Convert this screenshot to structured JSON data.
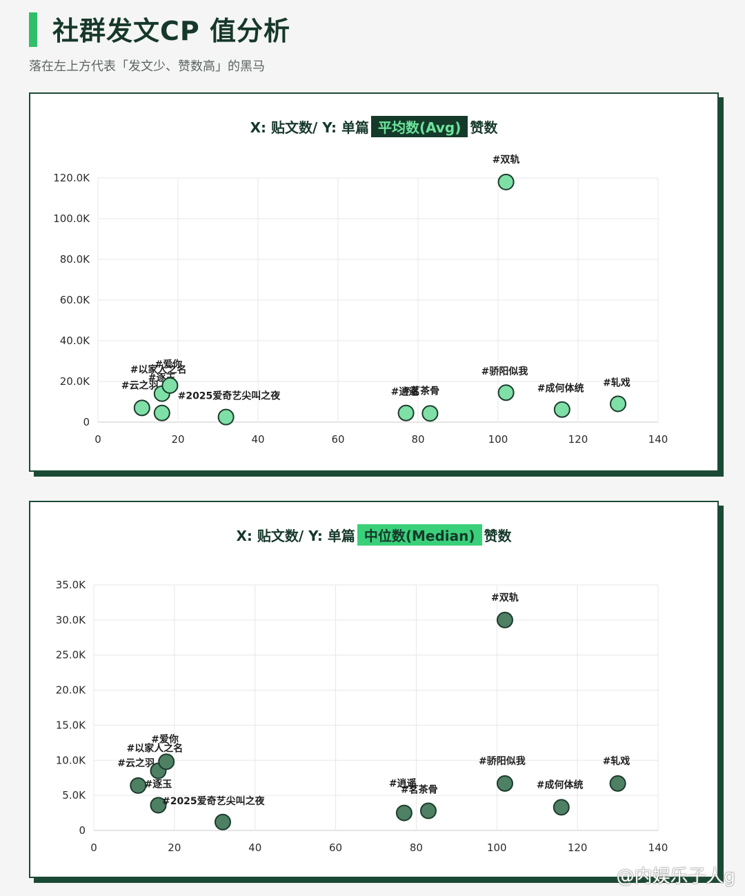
{
  "header": {
    "title": "社群发文CP 值分析",
    "subtitle": "落在左上方代表「发文少、赞数高」的黑马"
  },
  "watermark": "@内娱乐子人g",
  "colors": {
    "accent": "#2fbf6a",
    "frame": "#1b4a34",
    "avg_point": "#7ee0a6",
    "median_point": "#4e8064",
    "point_stroke": "#1c3a2c"
  },
  "chart_data": [
    {
      "type": "scatter",
      "title_prefix": "X: 贴文数/ Y: 单篇",
      "title_highlight": "平均数(Avg)",
      "title_suffix": "赞数",
      "xlabel": "贴文数",
      "ylabel": "单篇平均数赞数",
      "xlim": [
        0,
        140
      ],
      "ylim": [
        0,
        120000
      ],
      "x_ticks": [
        "0",
        "20",
        "40",
        "60",
        "80",
        "100",
        "120",
        "140"
      ],
      "y_ticks": [
        {
          "value": 0,
          "label": "0"
        },
        {
          "value": 20000,
          "label": "20.0K"
        },
        {
          "value": 40000,
          "label": "40.0K"
        },
        {
          "value": 60000,
          "label": "60.0K"
        },
        {
          "value": 80000,
          "label": "80.0K"
        },
        {
          "value": 100000,
          "label": "100.0K"
        },
        {
          "value": 120000,
          "label": "120.0K"
        }
      ],
      "grid": true,
      "points": [
        {
          "label": "#云之羽",
          "x": 11,
          "y": 7000
        },
        {
          "label": "#逐玉",
          "x": 16,
          "y": 14000
        },
        {
          "label": "#以家人之名",
          "x": 16,
          "y": 4500
        },
        {
          "label": "#爱你",
          "x": 18,
          "y": 18000
        },
        {
          "label": "#2025爱奇艺尖叫之夜",
          "x": 32,
          "y": 2500
        },
        {
          "label": "#逍遥",
          "x": 77,
          "y": 4500
        },
        {
          "label": "#茗茶骨",
          "x": 83,
          "y": 4300
        },
        {
          "label": "#双轨",
          "x": 102,
          "y": 118000
        },
        {
          "label": "#骄阳似我",
          "x": 102,
          "y": 14500
        },
        {
          "label": "#成何体统",
          "x": 116,
          "y": 6200
        },
        {
          "label": "#轧戏",
          "x": 130,
          "y": 9000
        }
      ]
    },
    {
      "type": "scatter",
      "title_prefix": "X: 贴文数/ Y: 单篇",
      "title_highlight": "中位数(Median)",
      "title_suffix": "赞数",
      "xlabel": "贴文数",
      "ylabel": "单篇中位数赞数",
      "xlim": [
        0,
        140
      ],
      "ylim": [
        0,
        35000
      ],
      "x_ticks": [
        "0",
        "20",
        "40",
        "60",
        "80",
        "100",
        "120",
        "140"
      ],
      "y_ticks": [
        {
          "value": 0,
          "label": "0"
        },
        {
          "value": 5000,
          "label": "5.0K"
        },
        {
          "value": 10000,
          "label": "10.0K"
        },
        {
          "value": 15000,
          "label": "15.0K"
        },
        {
          "value": 20000,
          "label": "20.0K"
        },
        {
          "value": 25000,
          "label": "25.0K"
        },
        {
          "value": 30000,
          "label": "30.0K"
        },
        {
          "value": 35000,
          "label": "35.0K"
        }
      ],
      "grid": true,
      "points": [
        {
          "label": "#云之羽",
          "x": 11,
          "y": 6400
        },
        {
          "label": "#以家人之名",
          "x": 16,
          "y": 8500
        },
        {
          "label": "#逐玉",
          "x": 16,
          "y": 3600
        },
        {
          "label": "#爱你",
          "x": 18,
          "y": 9800
        },
        {
          "label": "#2025爱奇艺尖叫之夜",
          "x": 32,
          "y": 1200
        },
        {
          "label": "#逍遥",
          "x": 77,
          "y": 2500
        },
        {
          "label": "#茗茶骨",
          "x": 83,
          "y": 2800
        },
        {
          "label": "#双轨",
          "x": 102,
          "y": 30000
        },
        {
          "label": "#骄阳似我",
          "x": 102,
          "y": 6700
        },
        {
          "label": "#成何体统",
          "x": 116,
          "y": 3300
        },
        {
          "label": "#轧戏",
          "x": 130,
          "y": 6700
        }
      ]
    }
  ]
}
